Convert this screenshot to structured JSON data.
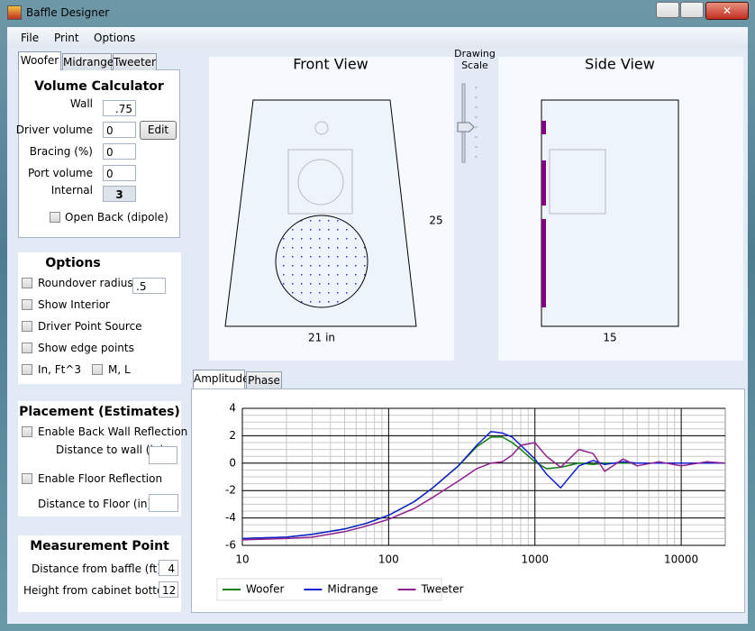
{
  "window": {
    "title": "Baffle Designer"
  },
  "menu": [
    "File",
    "Print",
    "Options"
  ],
  "driver_tabs": [
    "Woofer",
    "Midrange",
    "Tweeter"
  ],
  "volume": {
    "title": "Volume Calculator",
    "wall": {
      "label": "Wall",
      "value": ".75"
    },
    "driver_volume": {
      "label": "Driver volume",
      "value": "0"
    },
    "edit_button": "Edit",
    "bracing": {
      "label": "Bracing (%)",
      "value": "0"
    },
    "port_volume": {
      "label": "Port volume",
      "value": "0"
    },
    "internal": {
      "label": "Internal",
      "value": "3"
    },
    "open_back": "Open Back (dipole)"
  },
  "options": {
    "title": "Options",
    "roundover": {
      "label": "Roundover radius",
      "value": ".5"
    },
    "show_interior": "Show Interior",
    "driver_point_source": "Driver Point Source",
    "show_edge_points": "Show edge points",
    "units_in": "In, Ft^3",
    "units_m": "M, L"
  },
  "placement": {
    "title": "Placement (Estimates)",
    "back_wall": "Enable Back Wall Reflection",
    "distance_wall": "Distance to wall (in)",
    "floor": "Enable Floor Reflection",
    "distance_floor": "Distance to Floor (in)"
  },
  "measurement": {
    "title": "Measurement Point",
    "distance": {
      "label": "Distance from baffle (ft)",
      "value": "4"
    },
    "height": {
      "label": "Height from cabinet bottom",
      "value": "12"
    }
  },
  "front_view": {
    "title": "Front View",
    "width_label": "21 in",
    "height_label": "25"
  },
  "drawing_scale": [
    "Drawing",
    "Scale"
  ],
  "side_view": {
    "title": "Side View",
    "depth_label": "15"
  },
  "chart_tabs": [
    "Amplitude",
    "Phase"
  ],
  "chart_data": {
    "type": "line",
    "log_x": true,
    "grid": true,
    "minor_grid": true,
    "legend": "bottom-left",
    "xlim": [
      10,
      20000
    ],
    "xticks": [
      10,
      100,
      1000,
      10000
    ],
    "ylim": [
      -6,
      4
    ],
    "yticks": [
      -6,
      -4,
      -2,
      0,
      2,
      4
    ],
    "x": [
      10,
      20,
      30,
      50,
      70,
      100,
      150,
      200,
      300,
      400,
      500,
      600,
      700,
      800,
      1000,
      1200,
      1500,
      2000,
      2500,
      3000,
      4000,
      5000,
      7000,
      10000,
      15000,
      20000
    ],
    "series": [
      {
        "name": "Woofer",
        "color": "#108010",
        "values": [
          -5.5,
          -5.4,
          -5.2,
          -4.8,
          -4.4,
          -3.8,
          -2.8,
          -1.8,
          -0.2,
          1.2,
          1.9,
          1.9,
          1.5,
          1.0,
          0.1,
          -0.4,
          -0.3,
          0.0,
          -0.1,
          0.0,
          0.0,
          0.0,
          0.0,
          0.0,
          0.0,
          0.0
        ]
      },
      {
        "name": "Midrange",
        "color": "#1020d0",
        "values": [
          -5.5,
          -5.4,
          -5.2,
          -4.8,
          -4.4,
          -3.8,
          -2.8,
          -1.8,
          -0.2,
          1.3,
          2.3,
          2.2,
          1.9,
          1.3,
          0.3,
          -0.8,
          -1.8,
          -0.2,
          0.2,
          -0.1,
          0.1,
          0.0,
          0.0,
          0.0,
          0.0,
          0.0
        ]
      },
      {
        "name": "Tweeter",
        "color": "#902090",
        "values": [
          -5.6,
          -5.5,
          -5.4,
          -5.0,
          -4.6,
          -4.1,
          -3.3,
          -2.5,
          -1.3,
          -0.4,
          0.0,
          0.1,
          0.6,
          1.3,
          1.5,
          0.5,
          -0.3,
          1.0,
          0.7,
          -0.6,
          0.3,
          -0.2,
          0.1,
          -0.2,
          0.1,
          0.0
        ]
      }
    ]
  }
}
